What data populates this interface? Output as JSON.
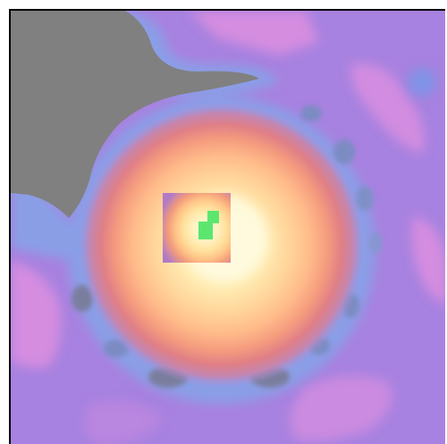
{
  "viewer": {
    "type": "false-color intensity map",
    "palette": {
      "masked": "#808080",
      "background": "#a882e0",
      "low": "#d98ee0",
      "ring": "#8a9ee6",
      "ring_dark": "#7a8ecc",
      "orange": "#f5a07a",
      "peach": "#ffc89a",
      "yellow": "#ffe7a6",
      "core": "#fffbe0",
      "marker": "#5ce66f"
    },
    "has_inset_zoom": true,
    "has_marker": true
  }
}
